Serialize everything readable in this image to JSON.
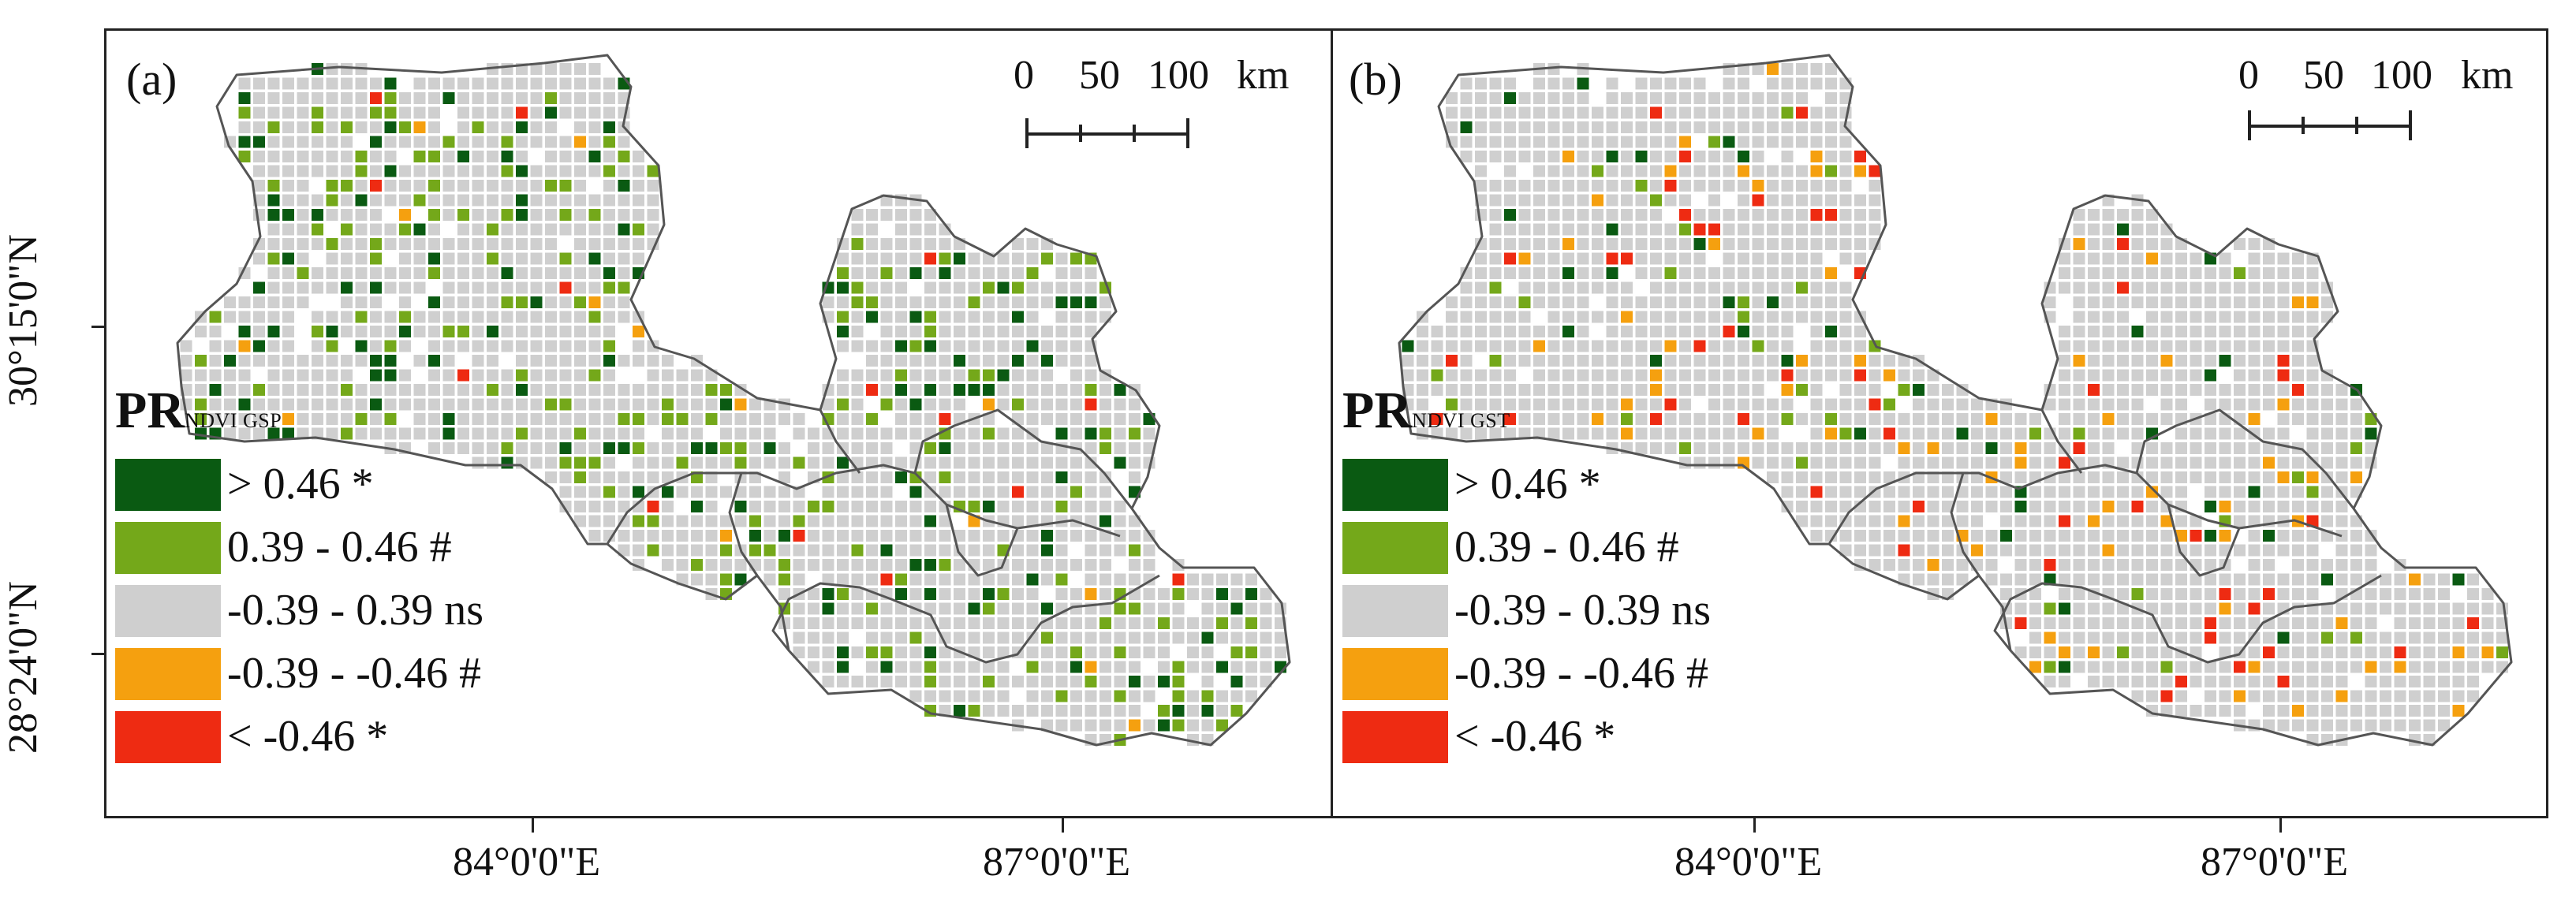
{
  "figure": {
    "latitude_labels": [
      "30°15'0\"N",
      "28°24'0\"N"
    ],
    "longitude_labels": [
      "84°0'0\"E",
      "87°0'0\"E"
    ],
    "scale": {
      "ticks": [
        "0",
        "50",
        "100"
      ],
      "unit": "km"
    }
  },
  "legend": {
    "classes": [
      {
        "label": "> 0.46 *",
        "color": "#0a5a12"
      },
      {
        "label": "0.39 - 0.46 #",
        "color": "#74a81a"
      },
      {
        "label": "-0.39 - 0.39 ns",
        "color": "#cfcfcf"
      },
      {
        "label": "-0.39 - -0.46 #",
        "color": "#f5a00f"
      },
      {
        "label": "< -0.46 *",
        "color": "#ee2b12"
      }
    ]
  },
  "panels": [
    {
      "label": "(a)",
      "title_main": "PR",
      "title_sub": "NDVI GSP",
      "seed": 17,
      "mix": [
        0.78,
        0.08,
        0.12,
        0.012,
        0.008
      ]
    },
    {
      "label": "(b)",
      "title_main": "PR",
      "title_sub": "NDVI GST",
      "seed": 91,
      "mix": [
        0.86,
        0.025,
        0.025,
        0.05,
        0.04
      ]
    }
  ],
  "colors": {
    "boundary": "#555555",
    "frame": "#222222",
    "background": "#ffffff"
  }
}
